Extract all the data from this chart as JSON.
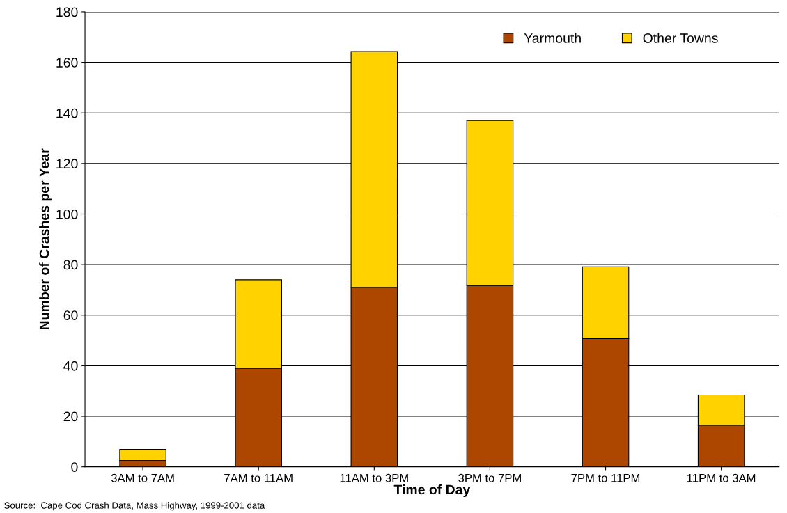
{
  "chart_data": {
    "type": "bar",
    "stacked": true,
    "xlabel": "Time of Day",
    "ylabel": "Number of Crashes per Year",
    "categories": [
      "3AM to 7AM",
      "7AM to 11AM",
      "11AM to 3PM",
      "3PM to 7PM",
      "7PM to 11PM",
      "11PM to 3AM"
    ],
    "series": [
      {
        "name": "Yarmouth",
        "color": "#ad4700",
        "values": [
          2.5,
          39,
          71,
          71.7,
          50.7,
          16.5
        ]
      },
      {
        "name": "Other Towns",
        "color": "#ffd200",
        "values": [
          4.4,
          35,
          93.3,
          65.3,
          28.4,
          11.9
        ]
      }
    ],
    "ylim": [
      0,
      180
    ],
    "yticks": [
      0,
      20,
      40,
      60,
      80,
      100,
      120,
      140,
      160,
      180
    ],
    "grid": "y",
    "legend": "top right",
    "annotations": [
      "Source:  Cape Cod Crash Data, Mass Highway, 1999-2001 data"
    ]
  }
}
